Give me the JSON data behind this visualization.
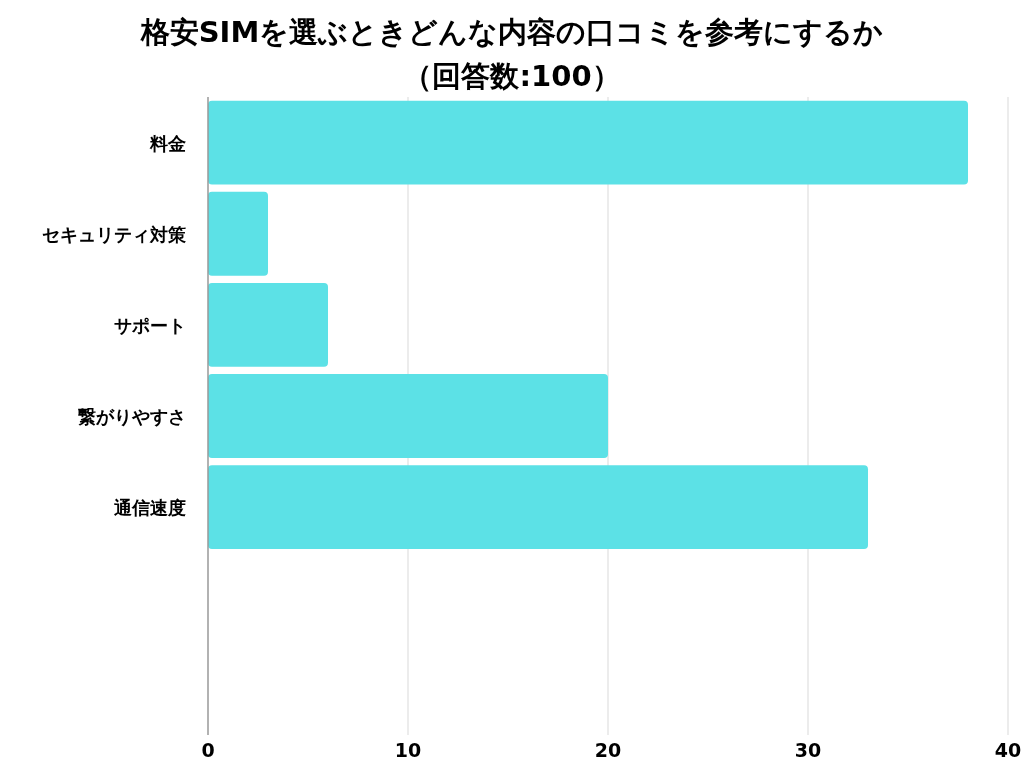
{
  "chart_data": {
    "type": "bar",
    "orientation": "horizontal",
    "title": "格安SIMを選ぶときどんな内容の口コミを参考にするか",
    "subtitle": "（回答数:100）",
    "categories": [
      "料金",
      "セキュリティ対策",
      "サポート",
      "繋がりやすさ",
      "通信速度",
      null,
      null
    ],
    "values": [
      38,
      3,
      6,
      20,
      33,
      null,
      null
    ],
    "color": "#5ce1e6",
    "xlim": [
      0,
      40
    ],
    "xticks": [
      0,
      10,
      20,
      30,
      40
    ],
    "grid": "x"
  }
}
